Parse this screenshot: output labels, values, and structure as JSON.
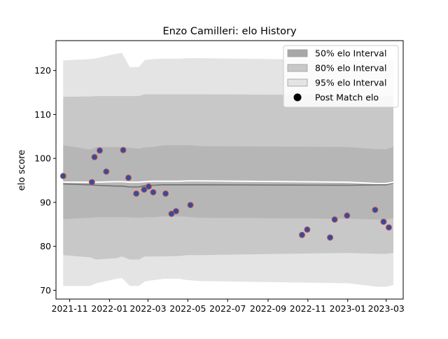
{
  "chart_data": {
    "type": "scatter",
    "title": "Enzo Camilleri: elo History",
    "xlabel": "",
    "ylabel": "elo score",
    "xlim": [
      "2021-10-11",
      "2023-03-27"
    ],
    "ylim": [
      68,
      126.8
    ],
    "x_ticks": [
      "2021-11-01",
      "2022-01-01",
      "2022-03-01",
      "2022-05-01",
      "2022-07-01",
      "2022-09-01",
      "2022-11-01",
      "2023-01-01",
      "2023-03-01"
    ],
    "x_tick_labels": [
      "2021-11",
      "2022-01",
      "2022-03",
      "2022-05",
      "2022-07",
      "2022-09",
      "2022-11",
      "2023-01",
      "2023-03"
    ],
    "y_ticks": [
      70,
      80,
      90,
      100,
      110,
      120
    ],
    "legend_position": "top-right",
    "grid": false,
    "colors": {
      "band50": "#a8a8a8",
      "band80": "#c8c8c8",
      "band95": "#e4e4e4",
      "mean_line": "#ffffff",
      "median_line": "#707070",
      "marker_fill": "#2e4fa0",
      "marker_edge": "#d0504a"
    },
    "legend": [
      {
        "label": "50% elo Interval",
        "kind": "band50"
      },
      {
        "label": "80% elo Interval",
        "kind": "band80"
      },
      {
        "label": "95% elo Interval",
        "kind": "band95"
      },
      {
        "label": "Post Match elo",
        "kind": "point"
      }
    ],
    "bands_x": [
      "2021-10-22",
      "2021-12-02",
      "2021-12-12",
      "2022-01-11",
      "2022-01-20",
      "2022-02-01",
      "2022-02-15",
      "2022-02-24",
      "2022-03-09",
      "2022-03-25",
      "2022-04-18",
      "2022-05-01",
      "2022-05-20",
      "2023-01-01",
      "2023-02-15",
      "2023-03-01",
      "2023-03-12"
    ],
    "band95_upper": [
      122.3,
      122.6,
      122.8,
      123.8,
      124.0,
      120.8,
      120.8,
      122.4,
      122.6,
      122.7,
      122.7,
      122.8,
      122.8,
      122.4,
      122.2,
      122.2,
      122.4
    ],
    "band95_lower": [
      71.0,
      71.0,
      71.6,
      72.6,
      72.8,
      71.0,
      71.0,
      72.0,
      72.3,
      72.6,
      72.6,
      72.3,
      72.1,
      71.6,
      70.8,
      70.8,
      71.2
    ],
    "band80_upper": [
      114.0,
      114.1,
      114.2,
      114.2,
      114.2,
      114.2,
      114.2,
      114.6,
      114.6,
      114.6,
      114.6,
      114.6,
      114.6,
      114.4,
      114.2,
      114.2,
      114.4
    ],
    "band80_lower": [
      78.0,
      77.5,
      77.0,
      77.3,
      77.7,
      77.0,
      77.0,
      77.7,
      77.7,
      77.7,
      77.8,
      78.0,
      78.0,
      78.5,
      78.3,
      78.3,
      78.5
    ],
    "band50_upper": [
      103.0,
      102.0,
      102.6,
      102.6,
      102.6,
      102.4,
      102.2,
      102.5,
      102.6,
      103.0,
      103.0,
      103.0,
      102.8,
      102.6,
      102.1,
      102.1,
      102.6
    ],
    "band50_lower": [
      86.2,
      86.5,
      86.6,
      86.6,
      86.6,
      86.6,
      86.5,
      86.6,
      86.6,
      86.8,
      86.8,
      86.7,
      86.5,
      86.3,
      86.1,
      86.1,
      86.4
    ],
    "mean_line": [
      94.6,
      94.6,
      94.6,
      94.7,
      94.7,
      94.6,
      94.6,
      94.7,
      94.8,
      94.8,
      94.8,
      94.9,
      94.9,
      94.6,
      94.3,
      94.3,
      94.6
    ],
    "median_line": [
      94.2,
      94.0,
      93.9,
      93.7,
      93.7,
      93.5,
      93.5,
      93.8,
      93.9,
      94.0,
      94.0,
      94.0,
      94.0,
      93.9,
      94.0,
      94.0,
      94.4
    ],
    "points": [
      {
        "x": "2021-10-22",
        "y": 96.0
      },
      {
        "x": "2021-12-05",
        "y": 94.6
      },
      {
        "x": "2021-12-09",
        "y": 100.3
      },
      {
        "x": "2021-12-17",
        "y": 101.8
      },
      {
        "x": "2021-12-27",
        "y": 97.0
      },
      {
        "x": "2022-01-22",
        "y": 101.9
      },
      {
        "x": "2022-01-30",
        "y": 95.6
      },
      {
        "x": "2022-02-11",
        "y": 92.0
      },
      {
        "x": "2022-02-23",
        "y": 92.9
      },
      {
        "x": "2022-03-02",
        "y": 93.6
      },
      {
        "x": "2022-03-09",
        "y": 92.3
      },
      {
        "x": "2022-03-28",
        "y": 92.0
      },
      {
        "x": "2022-04-06",
        "y": 87.4
      },
      {
        "x": "2022-04-13",
        "y": 88.0
      },
      {
        "x": "2022-05-05",
        "y": 89.4
      },
      {
        "x": "2022-10-23",
        "y": 82.6
      },
      {
        "x": "2022-10-31",
        "y": 83.8
      },
      {
        "x": "2022-12-05",
        "y": 82.0
      },
      {
        "x": "2022-12-12",
        "y": 86.1
      },
      {
        "x": "2022-12-31",
        "y": 87.0
      },
      {
        "x": "2023-02-12",
        "y": 88.3
      },
      {
        "x": "2023-02-25",
        "y": 85.6
      },
      {
        "x": "2023-03-05",
        "y": 84.3
      }
    ]
  }
}
